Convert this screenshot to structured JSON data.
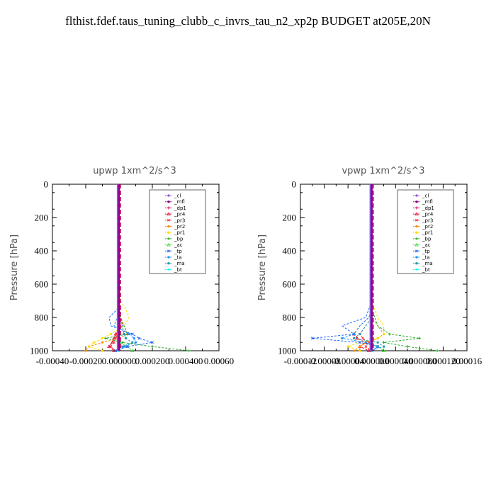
{
  "title": "flthist.fdef.taus_tuning_clubb_c_invrs_tau_n2_xp2p  BUDGET at205E,20N",
  "chart_data": [
    {
      "type": "line",
      "title": "upwp   1xm^2/s^3",
      "ylabel": "Pressure [hPa]",
      "ylim": [
        1000,
        0
      ],
      "xlim": [
        -0.0004,
        0.0006
      ],
      "xticks": [
        "-0.00040",
        "-0.00020",
        "0.000000",
        "0.000200",
        "0.000400",
        "0.00060"
      ],
      "yticks": [
        "0",
        "200",
        "400",
        "600",
        "800",
        "1000"
      ],
      "legend": [
        "_cl",
        "_mfl",
        "_dp1",
        "_pr4",
        "_pr3",
        "_pr2",
        "_pr1",
        "_bp",
        "_ac",
        "_tp",
        "_ta",
        "_ma",
        "_bt"
      ],
      "colors": [
        "#8855dd",
        "#8b008b",
        "#c8005a",
        "#e8002a",
        "#ff3333",
        "#ff8800",
        "#ffdd00",
        "#22aa22",
        "#33dd33",
        "#2266ff",
        "#1e90ff",
        "#2299aa",
        "#00ffff"
      ],
      "y": [
        0,
        100,
        200,
        300,
        400,
        500,
        600,
        700,
        750,
        800,
        850,
        900,
        925,
        950,
        975,
        1000
      ],
      "series": [
        {
          "name": "_cl",
          "values": [
            0,
            0,
            0,
            0,
            0,
            0,
            0,
            0,
            0,
            0,
            0,
            0,
            0,
            0,
            0,
            0
          ]
        },
        {
          "name": "_mfl",
          "values": [
            0,
            0,
            0,
            0,
            0,
            0,
            0,
            0,
            0,
            0,
            0,
            0,
            0,
            0,
            0,
            0
          ]
        },
        {
          "name": "_dp1",
          "values": [
            0,
            0,
            0,
            0,
            0,
            0,
            0,
            0,
            0,
            0,
            0,
            0,
            0,
            0,
            0,
            0
          ]
        },
        {
          "name": "_pr4",
          "values": [
            0,
            0,
            0,
            0,
            0,
            0,
            0,
            0,
            5e-06,
            1e-05,
            2e-05,
            -2e-05,
            -3e-05,
            -4e-05,
            -6e-05,
            -3e-05
          ]
        },
        {
          "name": "_pr3",
          "values": [
            0,
            0,
            0,
            0,
            0,
            0,
            0,
            0,
            0,
            5e-06,
            1e-05,
            -1e-05,
            -2e-05,
            -3e-05,
            -5e-05,
            -2e-05
          ]
        },
        {
          "name": "_pr2",
          "values": [
            0,
            0,
            0,
            0,
            0,
            0,
            0,
            0,
            0,
            0,
            3e-05,
            5e-05,
            0,
            -0.0001,
            -0.00018,
            -0.0002
          ]
        },
        {
          "name": "_pr1",
          "values": [
            0,
            0,
            0,
            0,
            0,
            0,
            0,
            1e-05,
            4e-05,
            6e-05,
            3e-05,
            -5e-05,
            -0.0001,
            -0.00015,
            -0.00018,
            -0.0001
          ]
        },
        {
          "name": "_bp",
          "values": [
            0,
            0,
            0,
            0,
            0,
            0,
            0,
            0,
            0,
            1e-05,
            3e-05,
            5e-05,
            -8e-05,
            2e-05,
            0.0002,
            0.00042
          ]
        },
        {
          "name": "_ac",
          "values": [
            0,
            0,
            0,
            0,
            0,
            0,
            0,
            0,
            0,
            0,
            0,
            0,
            0,
            0,
            5e-05,
            8e-05
          ]
        },
        {
          "name": "_tp",
          "values": [
            0,
            0,
            0,
            0,
            0,
            0,
            0,
            0,
            -1e-05,
            -6e-05,
            -5e-05,
            8e-05,
            0.00012,
            0.0002,
            5e-05,
            -2e-05
          ]
        },
        {
          "name": "_ta",
          "values": [
            0,
            0,
            0,
            0,
            0,
            0,
            0,
            0,
            0,
            -1e-05,
            -3e-05,
            6e-05,
            9e-05,
            0.0001,
            3e-05,
            0
          ]
        },
        {
          "name": "_ma",
          "values": [
            0,
            0,
            0,
            0,
            0,
            0,
            0,
            0,
            0,
            -1e-05,
            2e-05,
            3e-05,
            4e-05,
            8e-05,
            2e-05,
            0
          ]
        },
        {
          "name": "_bt",
          "values": [
            0,
            0,
            0,
            0,
            0,
            0,
            0,
            0,
            0,
            0,
            0,
            0,
            0,
            0,
            0,
            0
          ]
        }
      ]
    },
    {
      "type": "line",
      "title": "vpwp   1xm^2/s^3",
      "ylabel": "Pressure [hPa]",
      "ylim": [
        1000,
        0
      ],
      "xlim": [
        -0.00012,
        0.00016
      ],
      "xticks": [
        "-0.00012",
        "-0.00008",
        "-0.00004",
        "0.000000",
        "0.000040",
        "0.000080",
        "0.000120",
        "0.00016"
      ],
      "yticks": [
        "0",
        "200",
        "400",
        "600",
        "800",
        "1000"
      ],
      "legend": [
        "_cl",
        "_mfl",
        "_dp1",
        "_pr4",
        "_pr3",
        "_pr2",
        "_pr1",
        "_bp",
        "_ac",
        "_tp",
        "_ta",
        "_ma",
        "_bt"
      ],
      "colors": [
        "#8855dd",
        "#8b008b",
        "#c8005a",
        "#e8002a",
        "#ff3333",
        "#ff8800",
        "#ffdd00",
        "#22aa22",
        "#33dd33",
        "#2266ff",
        "#1e90ff",
        "#2299aa",
        "#00ffff"
      ],
      "y": [
        0,
        100,
        200,
        300,
        400,
        500,
        600,
        700,
        750,
        800,
        850,
        900,
        925,
        950,
        975,
        1000
      ],
      "series": [
        {
          "name": "_cl",
          "values": [
            0,
            0,
            0,
            0,
            0,
            0,
            0,
            0,
            0,
            0,
            0,
            0,
            0,
            0,
            0,
            0
          ]
        },
        {
          "name": "_mfl",
          "values": [
            0,
            0,
            0,
            0,
            0,
            0,
            0,
            0,
            0,
            0,
            0,
            0,
            0,
            0,
            0,
            0
          ]
        },
        {
          "name": "_dp1",
          "values": [
            0,
            0,
            0,
            0,
            0,
            0,
            0,
            0,
            0,
            0,
            0,
            0,
            0,
            0,
            0,
            0
          ]
        },
        {
          "name": "_pr4",
          "values": [
            0,
            0,
            0,
            0,
            0,
            0,
            0,
            0,
            0,
            -5e-06,
            -2e-05,
            -3e-05,
            -2.5e-05,
            -1e-05,
            -2e-05,
            -5e-06
          ]
        },
        {
          "name": "_pr3",
          "values": [
            0,
            0,
            0,
            0,
            0,
            0,
            0,
            0,
            0,
            0,
            -1e-05,
            -2e-05,
            -1.5e-05,
            -5e-06,
            -1e-05,
            0
          ]
        },
        {
          "name": "_pr2",
          "values": [
            0,
            0,
            0,
            0,
            0,
            0,
            0,
            0,
            0,
            0,
            1e-05,
            2e-05,
            1e-05,
            -1e-05,
            -2e-05,
            -3e-05
          ]
        },
        {
          "name": "_pr1",
          "values": [
            0,
            0,
            0,
            0,
            0,
            0,
            0,
            0,
            5e-06,
            1e-05,
            2e-05,
            2e-05,
            1e-05,
            -2e-05,
            -4e-05,
            -2e-05
          ]
        },
        {
          "name": "_bp",
          "values": [
            0,
            0,
            0,
            0,
            0,
            0,
            0,
            0,
            0,
            5e-06,
            1e-05,
            3e-05,
            8e-05,
            2e-05,
            6e-05,
            0.00011
          ]
        },
        {
          "name": "_ac",
          "values": [
            0,
            0,
            0,
            0,
            0,
            0,
            0,
            0,
            0,
            0,
            0,
            0,
            0,
            0,
            1e-05,
            2e-05
          ]
        },
        {
          "name": "_tp",
          "values": [
            0,
            0,
            0,
            0,
            0,
            0,
            0,
            0,
            -5e-06,
            -1e-05,
            -5e-05,
            -3e-05,
            -0.0001,
            -2e-05,
            1e-05,
            0
          ]
        },
        {
          "name": "_ta",
          "values": [
            0,
            0,
            0,
            0,
            0,
            0,
            0,
            0,
            0,
            -5e-06,
            -2e-05,
            -3e-05,
            -5e-05,
            -1e-05,
            1e-05,
            0
          ]
        },
        {
          "name": "_ma",
          "values": [
            0,
            0,
            0,
            0,
            0,
            0,
            0,
            0,
            0,
            0,
            -1e-05,
            -2e-05,
            -3e-05,
            1e-05,
            2e-05,
            0
          ]
        },
        {
          "name": "_bt",
          "values": [
            0,
            0,
            0,
            0,
            0,
            0,
            0,
            0,
            0,
            0,
            0,
            0,
            0,
            0,
            0,
            0
          ]
        }
      ]
    }
  ]
}
